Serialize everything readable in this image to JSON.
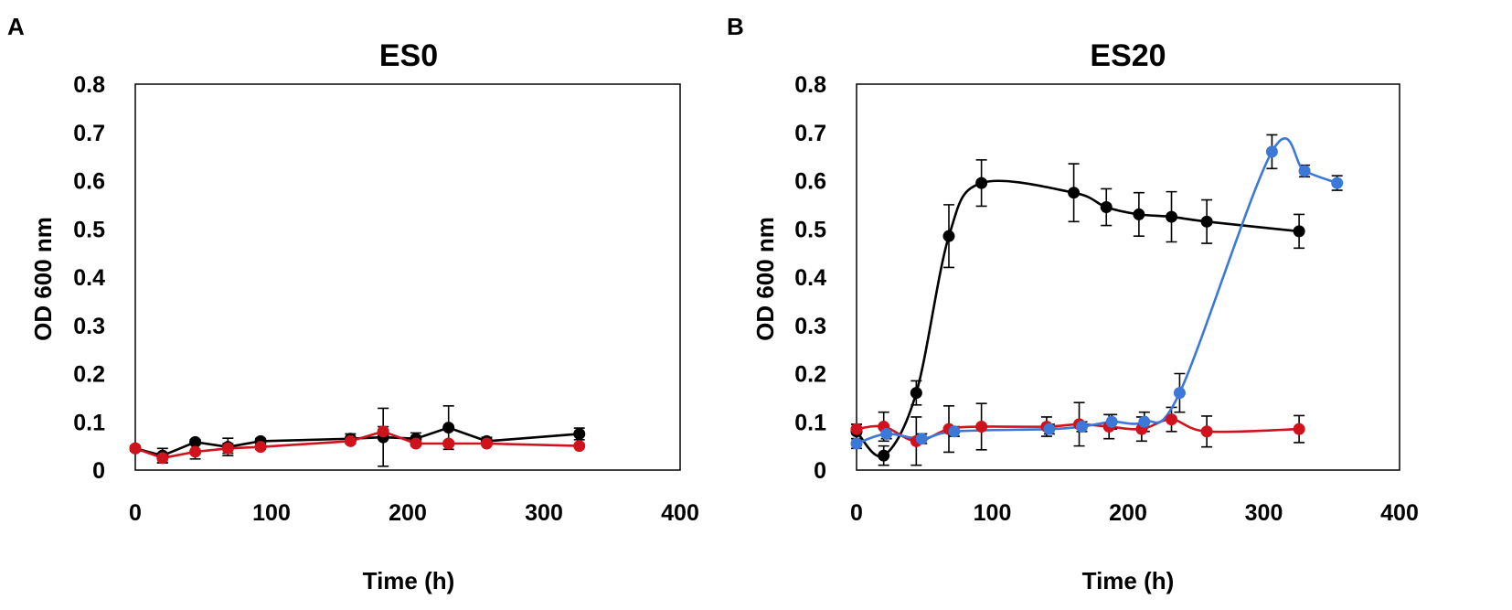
{
  "chart_data": [
    {
      "panel": "A",
      "type": "line",
      "title": "ES0",
      "xlabel": "Time (h)",
      "ylabel": "OD 600 nm",
      "xlim": [
        0,
        400
      ],
      "ylim": [
        0,
        0.8
      ],
      "xticks": [
        0,
        100,
        200,
        300,
        400
      ],
      "yticks": [
        0,
        0.1,
        0.2,
        0.3,
        0.4,
        0.5,
        0.6,
        0.7,
        0.8
      ],
      "ytick_labels": [
        "0",
        "0.1",
        "0.2",
        "0.3",
        "0.4",
        "0.5",
        "0.6",
        "0.7",
        "0.8"
      ],
      "grid": false,
      "series": [
        {
          "name": "black",
          "color": "#000000",
          "marker": "circle",
          "smooth": false,
          "x": [
            0,
            20,
            44,
            68,
            92,
            158,
            182,
            206,
            230,
            258,
            326
          ],
          "y": [
            0.045,
            0.03,
            0.058,
            0.048,
            0.06,
            0.065,
            0.068,
            0.065,
            0.088,
            0.06,
            0.075
          ],
          "err": [
            0.005,
            0.015,
            0.005,
            0.018,
            0.005,
            0.01,
            0.06,
            0.012,
            0.045,
            0.008,
            0.012
          ]
        },
        {
          "name": "red",
          "color": "#d0121c",
          "marker": "circle",
          "smooth": false,
          "x": [
            0,
            20,
            44,
            68,
            92,
            158,
            182,
            206,
            230,
            258,
            326
          ],
          "y": [
            0.045,
            0.025,
            0.038,
            0.045,
            0.048,
            0.06,
            0.08,
            0.055,
            0.055,
            0.055,
            0.05
          ],
          "err": [
            0.005,
            0.01,
            0.015,
            0.01,
            0.005,
            0.005,
            0.01,
            0.005,
            0.005,
            0.003,
            0.003
          ]
        }
      ]
    },
    {
      "panel": "B",
      "type": "line",
      "title": "ES20",
      "xlabel": "Time (h)",
      "ylabel": "OD 600 nm",
      "xlim": [
        0,
        400
      ],
      "ylim": [
        0,
        0.8
      ],
      "xticks": [
        0,
        100,
        200,
        300,
        400
      ],
      "yticks": [
        0,
        0.1,
        0.2,
        0.3,
        0.4,
        0.5,
        0.6,
        0.7,
        0.8
      ],
      "ytick_labels": [
        "0",
        "0.1",
        "0.2",
        "0.3",
        "0.4",
        "0.5",
        "0.6",
        "0.7",
        "0.8"
      ],
      "grid": false,
      "series": [
        {
          "name": "black",
          "color": "#000000",
          "marker": "circle",
          "smooth": true,
          "x": [
            0,
            20,
            44,
            68,
            92,
            160,
            184,
            208,
            232,
            258,
            326
          ],
          "y": [
            0.08,
            0.03,
            0.16,
            0.485,
            0.595,
            0.575,
            0.545,
            0.53,
            0.525,
            0.515,
            0.495
          ],
          "err": [
            0.015,
            0.02,
            0.025,
            0.065,
            0.048,
            0.06,
            0.038,
            0.045,
            0.052,
            0.045,
            0.035
          ]
        },
        {
          "name": "red",
          "color": "#d0121c",
          "marker": "circle",
          "smooth": true,
          "x": [
            0,
            20,
            44,
            68,
            92,
            140,
            164,
            186,
            210,
            232,
            258,
            326
          ],
          "y": [
            0.085,
            0.09,
            0.06,
            0.085,
            0.09,
            0.09,
            0.095,
            0.09,
            0.085,
            0.105,
            0.08,
            0.085
          ],
          "err": [
            0.01,
            0.03,
            0.05,
            0.048,
            0.048,
            0.02,
            0.045,
            0.025,
            0.025,
            0.025,
            0.032,
            0.028
          ]
        },
        {
          "name": "blue",
          "color": "#3b78d8",
          "marker": "circle",
          "smooth": true,
          "x": [
            0,
            22,
            48,
            72,
            142,
            166,
            188,
            212,
            238,
            306,
            330,
            354
          ],
          "y": [
            0.055,
            0.075,
            0.065,
            0.08,
            0.085,
            0.09,
            0.1,
            0.1,
            0.16,
            0.66,
            0.62,
            0.595
          ],
          "err": [
            0.01,
            0.01,
            0.01,
            0.01,
            0.01,
            0.01,
            0.015,
            0.02,
            0.04,
            0.035,
            0.012,
            0.015
          ]
        }
      ]
    }
  ]
}
